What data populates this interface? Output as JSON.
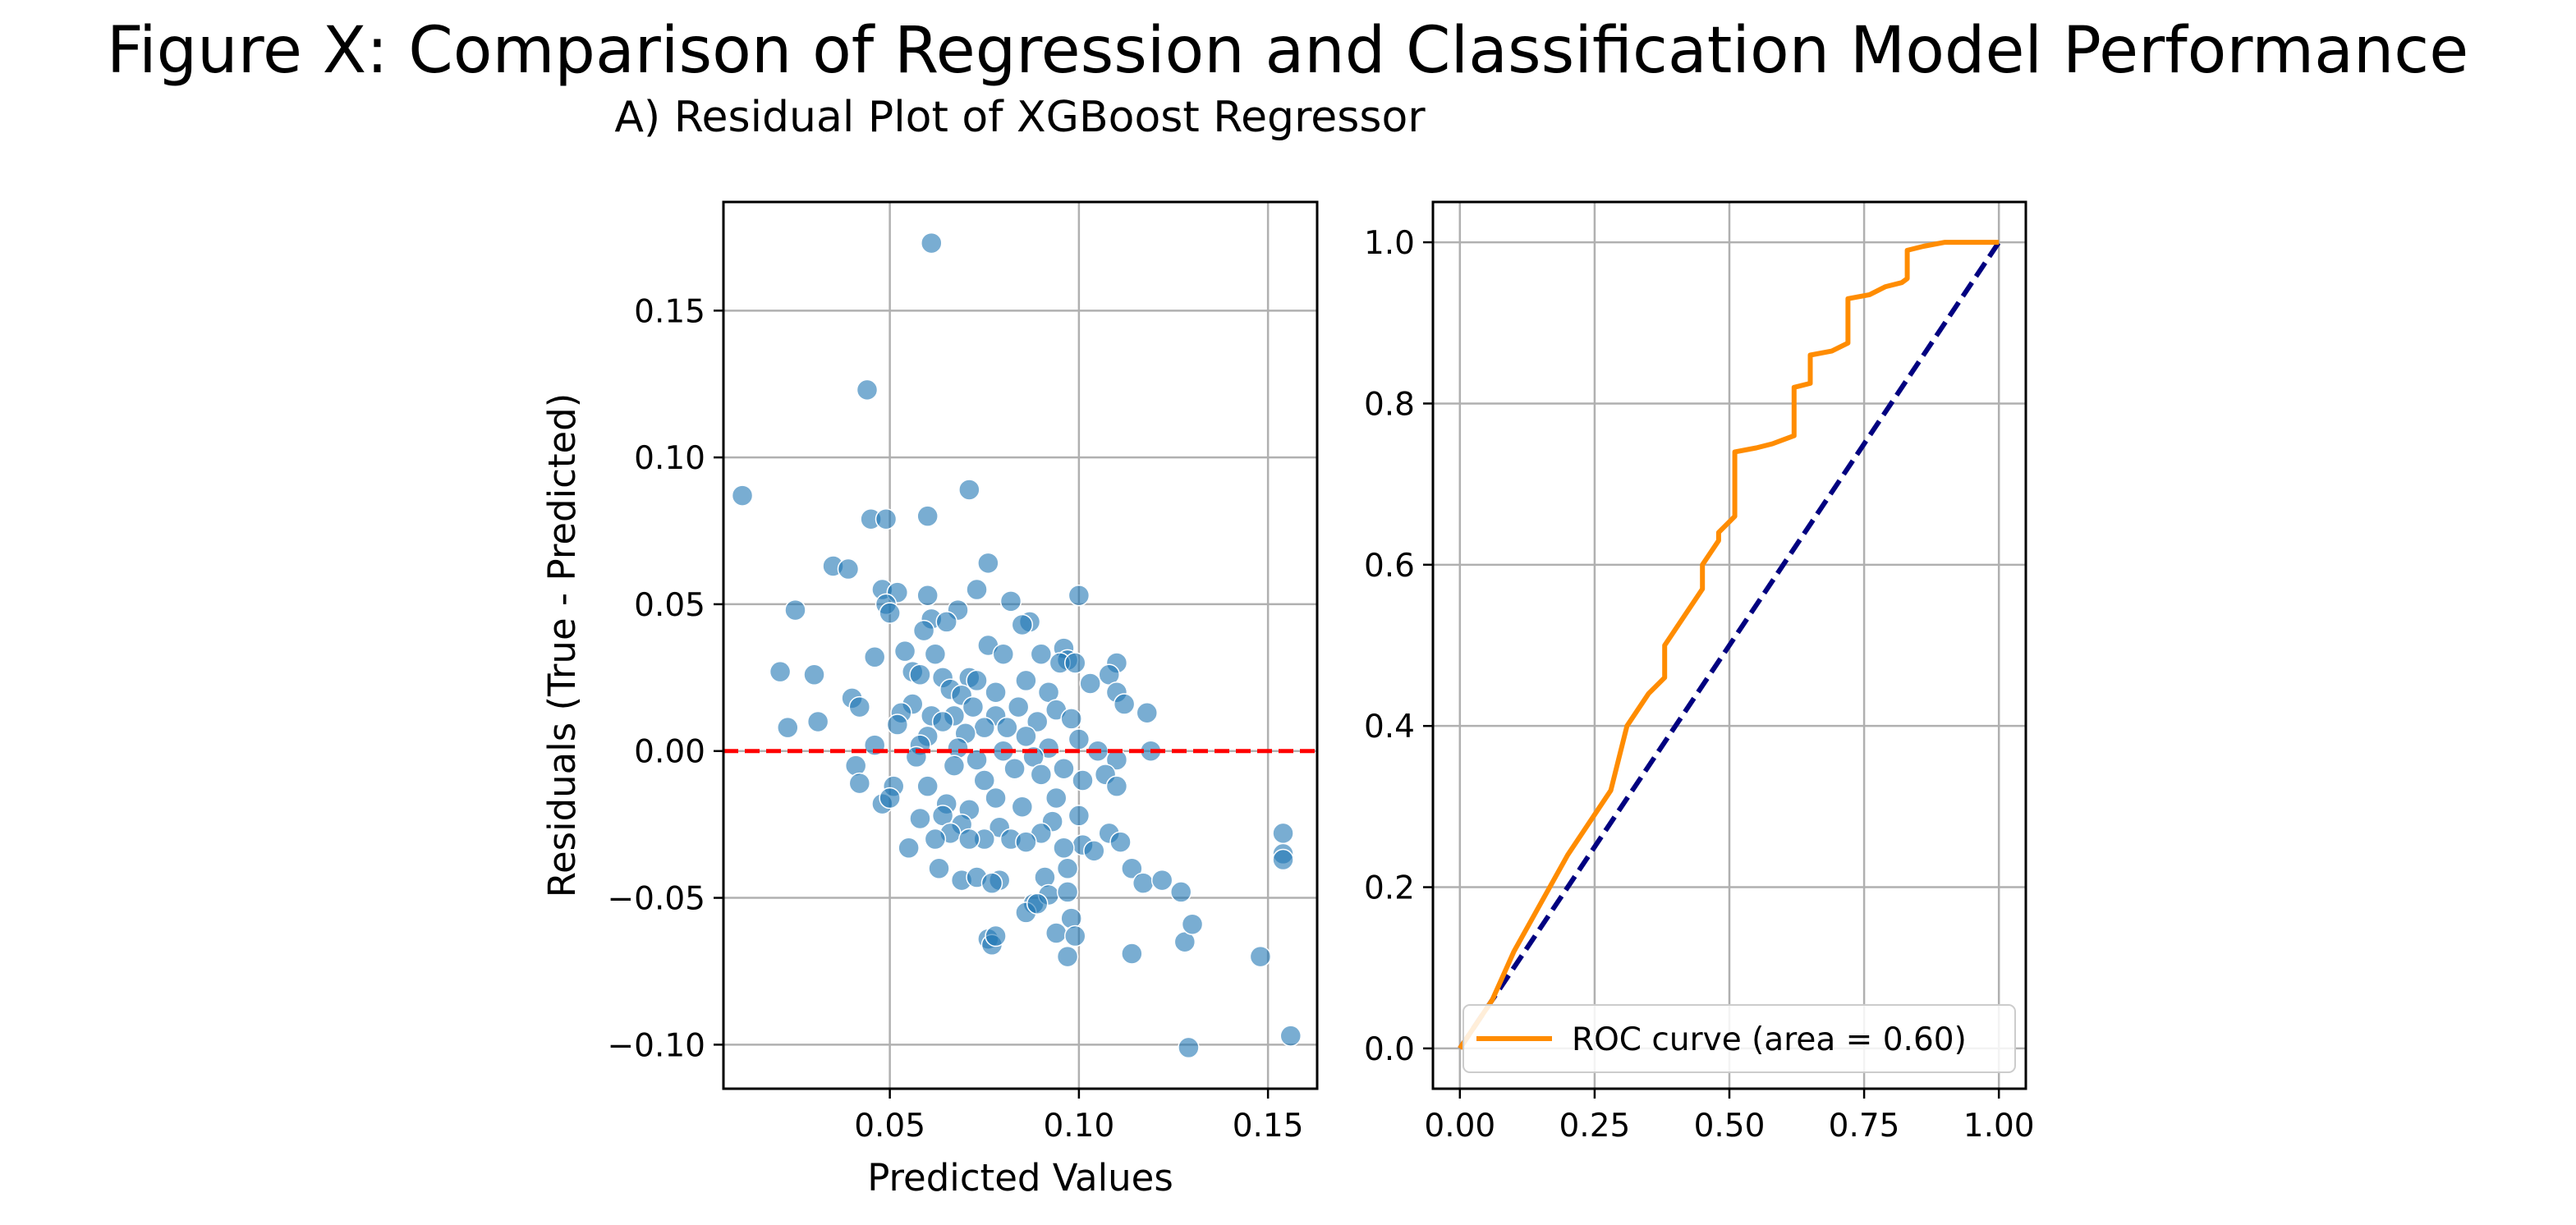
{
  "figure": {
    "title": "Figure X: Comparison of Regression and Classification Model Performance"
  },
  "chart_data": [
    {
      "type": "scatter",
      "title": "A) Residual Plot of XGBoost Regressor",
      "xlabel": "Predicted Values",
      "ylabel": "Residuals (True - Predicted)",
      "xlim": [
        0.006,
        0.163
      ],
      "ylim": [
        -0.115,
        0.187
      ],
      "xticks": [
        0.05,
        0.1,
        0.15
      ],
      "xtick_labels": [
        "0.05",
        "0.10",
        "0.15"
      ],
      "yticks": [
        -0.1,
        -0.05,
        0.0,
        0.05,
        0.1,
        0.15
      ],
      "ytick_labels": [
        "−0.10",
        "−0.05",
        "0.00",
        "0.05",
        "0.10",
        "0.15"
      ],
      "grid": true,
      "point_color": "#1f77b4",
      "reference_line": {
        "y": 0,
        "color": "#ff0000",
        "style": "dashed"
      },
      "points": [
        [
          0.061,
          0.173
        ],
        [
          0.044,
          0.123
        ],
        [
          0.011,
          0.087
        ],
        [
          0.071,
          0.089
        ],
        [
          0.045,
          0.079
        ],
        [
          0.049,
          0.079
        ],
        [
          0.06,
          0.08
        ],
        [
          0.035,
          0.063
        ],
        [
          0.039,
          0.062
        ],
        [
          0.076,
          0.064
        ],
        [
          0.048,
          0.055
        ],
        [
          0.052,
          0.054
        ],
        [
          0.06,
          0.053
        ],
        [
          0.073,
          0.055
        ],
        [
          0.1,
          0.053
        ],
        [
          0.025,
          0.048
        ],
        [
          0.049,
          0.05
        ],
        [
          0.05,
          0.047
        ],
        [
          0.061,
          0.045
        ],
        [
          0.068,
          0.048
        ],
        [
          0.082,
          0.051
        ],
        [
          0.087,
          0.044
        ],
        [
          0.059,
          0.041
        ],
        [
          0.065,
          0.044
        ],
        [
          0.085,
          0.043
        ],
        [
          0.076,
          0.036
        ],
        [
          0.096,
          0.035
        ],
        [
          0.054,
          0.034
        ],
        [
          0.046,
          0.032
        ],
        [
          0.062,
          0.033
        ],
        [
          0.08,
          0.033
        ],
        [
          0.09,
          0.033
        ],
        [
          0.097,
          0.031
        ],
        [
          0.021,
          0.027
        ],
        [
          0.03,
          0.026
        ],
        [
          0.056,
          0.027
        ],
        [
          0.058,
          0.026
        ],
        [
          0.064,
          0.025
        ],
        [
          0.071,
          0.025
        ],
        [
          0.073,
          0.024
        ],
        [
          0.086,
          0.024
        ],
        [
          0.095,
          0.03
        ],
        [
          0.099,
          0.03
        ],
        [
          0.11,
          0.03
        ],
        [
          0.108,
          0.026
        ],
        [
          0.103,
          0.023
        ],
        [
          0.066,
          0.021
        ],
        [
          0.078,
          0.02
        ],
        [
          0.092,
          0.02
        ],
        [
          0.04,
          0.018
        ],
        [
          0.069,
          0.019
        ],
        [
          0.11,
          0.02
        ],
        [
          0.042,
          0.015
        ],
        [
          0.056,
          0.016
        ],
        [
          0.061,
          0.012
        ],
        [
          0.072,
          0.015
        ],
        [
          0.084,
          0.015
        ],
        [
          0.094,
          0.014
        ],
        [
          0.112,
          0.016
        ],
        [
          0.118,
          0.013
        ],
        [
          0.053,
          0.013
        ],
        [
          0.067,
          0.012
        ],
        [
          0.078,
          0.012
        ],
        [
          0.098,
          0.011
        ],
        [
          0.023,
          0.008
        ],
        [
          0.031,
          0.01
        ],
        [
          0.052,
          0.009
        ],
        [
          0.064,
          0.01
        ],
        [
          0.075,
          0.008
        ],
        [
          0.081,
          0.008
        ],
        [
          0.089,
          0.01
        ],
        [
          0.07,
          0.006
        ],
        [
          0.086,
          0.005
        ],
        [
          0.06,
          0.005
        ],
        [
          0.1,
          0.004
        ],
        [
          0.046,
          0.002
        ],
        [
          0.058,
          0.002
        ],
        [
          0.068,
          0.001
        ],
        [
          0.08,
          0.0
        ],
        [
          0.092,
          0.001
        ],
        [
          0.105,
          0.0
        ],
        [
          0.119,
          0.0
        ],
        [
          0.057,
          -0.002
        ],
        [
          0.073,
          -0.003
        ],
        [
          0.088,
          -0.002
        ],
        [
          0.11,
          -0.003
        ],
        [
          0.041,
          -0.005
        ],
        [
          0.067,
          -0.005
        ],
        [
          0.083,
          -0.006
        ],
        [
          0.096,
          -0.006
        ],
        [
          0.107,
          -0.008
        ],
        [
          0.042,
          -0.011
        ],
        [
          0.051,
          -0.012
        ],
        [
          0.06,
          -0.012
        ],
        [
          0.075,
          -0.01
        ],
        [
          0.09,
          -0.008
        ],
        [
          0.101,
          -0.01
        ],
        [
          0.11,
          -0.012
        ],
        [
          0.048,
          -0.018
        ],
        [
          0.065,
          -0.018
        ],
        [
          0.078,
          -0.016
        ],
        [
          0.094,
          -0.016
        ],
        [
          0.05,
          -0.016
        ],
        [
          0.064,
          -0.022
        ],
        [
          0.071,
          -0.02
        ],
        [
          0.085,
          -0.019
        ],
        [
          0.1,
          -0.022
        ],
        [
          0.058,
          -0.023
        ],
        [
          0.069,
          -0.025
        ],
        [
          0.079,
          -0.026
        ],
        [
          0.093,
          -0.024
        ],
        [
          0.108,
          -0.028
        ],
        [
          0.066,
          -0.028
        ],
        [
          0.075,
          -0.03
        ],
        [
          0.082,
          -0.03
        ],
        [
          0.09,
          -0.028
        ],
        [
          0.101,
          -0.032
        ],
        [
          0.111,
          -0.031
        ],
        [
          0.055,
          -0.033
        ],
        [
          0.062,
          -0.03
        ],
        [
          0.071,
          -0.03
        ],
        [
          0.086,
          -0.031
        ],
        [
          0.096,
          -0.033
        ],
        [
          0.104,
          -0.034
        ],
        [
          0.069,
          -0.044
        ],
        [
          0.073,
          -0.043
        ],
        [
          0.079,
          -0.044
        ],
        [
          0.091,
          -0.043
        ],
        [
          0.097,
          -0.04
        ],
        [
          0.114,
          -0.04
        ],
        [
          0.117,
          -0.045
        ],
        [
          0.122,
          -0.044
        ],
        [
          0.127,
          -0.048
        ],
        [
          0.063,
          -0.04
        ],
        [
          0.077,
          -0.045
        ],
        [
          0.088,
          -0.052
        ],
        [
          0.092,
          -0.049
        ],
        [
          0.097,
          -0.048
        ],
        [
          0.086,
          -0.055
        ],
        [
          0.089,
          -0.052
        ],
        [
          0.098,
          -0.057
        ],
        [
          0.094,
          -0.062
        ],
        [
          0.099,
          -0.063
        ],
        [
          0.076,
          -0.064
        ],
        [
          0.077,
          -0.066
        ],
        [
          0.078,
          -0.063
        ],
        [
          0.114,
          -0.069
        ],
        [
          0.097,
          -0.07
        ],
        [
          0.128,
          -0.065
        ],
        [
          0.13,
          -0.059
        ],
        [
          0.148,
          -0.07
        ],
        [
          0.129,
          -0.101
        ],
        [
          0.156,
          -0.097
        ],
        [
          0.154,
          -0.028
        ],
        [
          0.154,
          -0.035
        ],
        [
          0.154,
          -0.037
        ]
      ]
    },
    {
      "type": "line",
      "title": "",
      "xlabel": "",
      "ylabel": "",
      "xlim": [
        -0.05,
        1.05
      ],
      "ylim": [
        -0.05,
        1.05
      ],
      "xticks": [
        0.0,
        0.25,
        0.5,
        0.75,
        1.0
      ],
      "xtick_labels": [
        "0.00",
        "0.25",
        "0.50",
        "0.75",
        "1.00"
      ],
      "yticks": [
        0.0,
        0.2,
        0.4,
        0.6,
        0.8,
        1.0
      ],
      "ytick_labels": [
        "0.0",
        "0.2",
        "0.4",
        "0.6",
        "0.8",
        "1.0"
      ],
      "grid": true,
      "legend": {
        "placement": "lower-right"
      },
      "series": [
        {
          "name": "ROC curve (area = 0.60)",
          "color": "#ff8c00",
          "style": "solid",
          "x": [
            0.0,
            0.03,
            0.06,
            0.1,
            0.15,
            0.2,
            0.25,
            0.28,
            0.31,
            0.35,
            0.38,
            0.38,
            0.45,
            0.45,
            0.48,
            0.48,
            0.51,
            0.51,
            0.55,
            0.58,
            0.62,
            0.62,
            0.65,
            0.65,
            0.69,
            0.72,
            0.72,
            0.76,
            0.79,
            0.82,
            0.83,
            0.83,
            0.86,
            0.9,
            0.95,
            1.0
          ],
          "y": [
            0.0,
            0.03,
            0.06,
            0.12,
            0.18,
            0.24,
            0.29,
            0.32,
            0.4,
            0.44,
            0.46,
            0.5,
            0.57,
            0.6,
            0.63,
            0.64,
            0.66,
            0.74,
            0.745,
            0.75,
            0.76,
            0.82,
            0.825,
            0.86,
            0.865,
            0.875,
            0.93,
            0.935,
            0.945,
            0.95,
            0.955,
            0.99,
            0.995,
            1.0,
            1.0,
            1.0
          ]
        },
        {
          "name": "",
          "color": "#000080",
          "style": "dashed",
          "x": [
            0.0,
            1.0
          ],
          "y": [
            0.0,
            1.0
          ]
        }
      ]
    }
  ]
}
